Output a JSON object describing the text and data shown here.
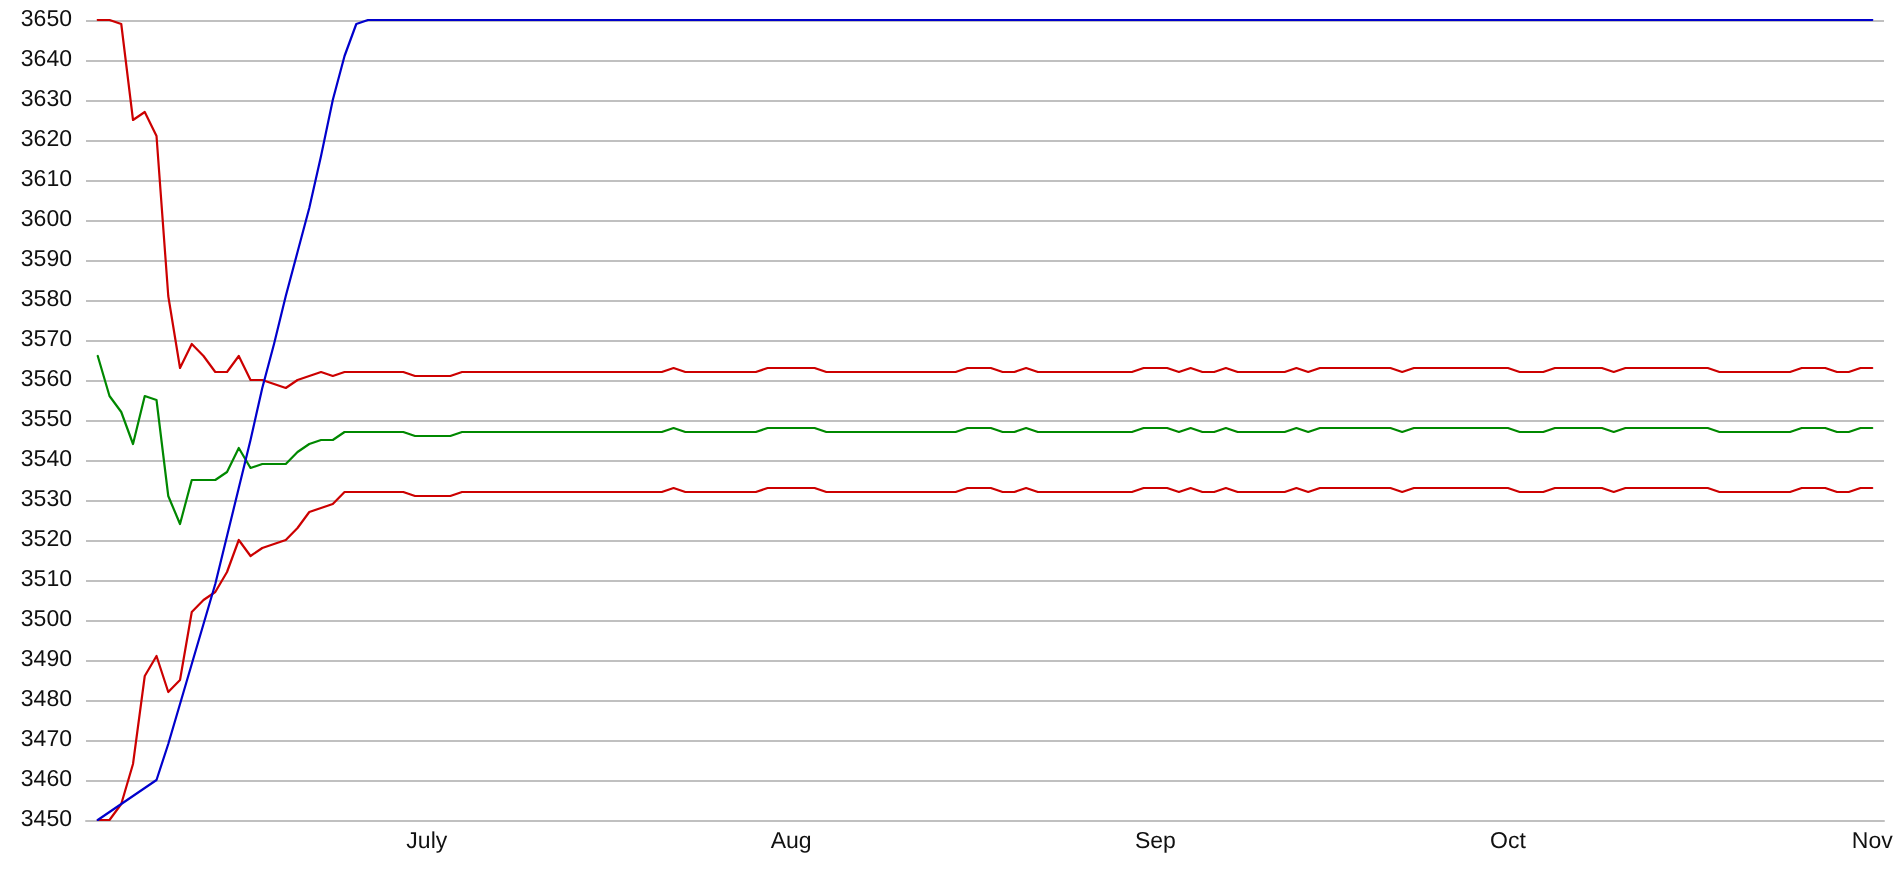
{
  "chart_data": {
    "type": "line",
    "x": [
      "--06-03",
      "--06-04",
      "--06-05",
      "--06-06",
      "--06-07",
      "--06-08",
      "--06-09",
      "--06-10",
      "--06-11",
      "--06-12",
      "--06-13",
      "--06-14",
      "--06-15",
      "--06-16",
      "--06-17",
      "--06-18",
      "--06-19",
      "--06-20",
      "--06-21",
      "--06-22",
      "--06-23",
      "--06-24",
      "--06-29",
      "--06-30",
      "--07-03",
      "--07-04",
      "--07-21",
      "--07-22",
      "--07-23",
      "--07-29",
      "--07-30",
      "--08-03",
      "--08-04",
      "--08-15",
      "--08-16",
      "--08-18",
      "--08-19",
      "--08-20",
      "--08-21",
      "--08-22",
      "--08-30",
      "--08-31",
      "--09-02",
      "--09-03",
      "--09-04",
      "--09-05",
      "--09-06",
      "--09-07",
      "--09-08",
      "--09-12",
      "--09-13",
      "--09-14",
      "--09-15",
      "--09-21",
      "--09-22",
      "--09-23",
      "--10-01",
      "--10-02",
      "--10-04",
      "--10-05",
      "--10-09",
      "--10-10",
      "--10-11",
      "--10-18",
      "--10-19",
      "--10-25",
      "--10-26",
      "--10-28",
      "--10-29",
      "--10-30",
      "--10-31",
      "--11-01"
    ],
    "series": [
      {
        "color": "#cc0000",
        "values": [
          3650,
          3650,
          3649,
          3625,
          3627,
          3621,
          3581,
          3563,
          3569,
          3566,
          3562,
          3562,
          3566,
          3560,
          3560,
          3559,
          3558,
          3560,
          3561,
          3562,
          3561,
          3562,
          3562,
          3561,
          3561,
          3562,
          3562,
          3563,
          3562,
          3562,
          3563,
          3563,
          3562,
          3562,
          3563,
          3563,
          3562,
          3562,
          3563,
          3562,
          3562,
          3563,
          3563,
          3562,
          3563,
          3562,
          3562,
          3563,
          3562,
          3562,
          3563,
          3562,
          3563,
          3563,
          3562,
          3563,
          3563,
          3562,
          3562,
          3563,
          3563,
          3562,
          3563,
          3563,
          3562,
          3562,
          3563,
          3563,
          3562,
          3562,
          3563,
          3563
        ]
      },
      {
        "color": "#008800",
        "values": [
          3566,
          3556,
          3552,
          3544,
          3556,
          3555,
          3531,
          3524,
          3535,
          3535,
          3535,
          3537,
          3543,
          3538,
          3539,
          3539,
          3539,
          3542,
          3544,
          3545,
          3545,
          3547,
          3547,
          3546,
          3546,
          3547,
          3547,
          3548,
          3547,
          3547,
          3548,
          3548,
          3547,
          3547,
          3548,
          3548,
          3547,
          3547,
          3548,
          3547,
          3547,
          3548,
          3548,
          3547,
          3548,
          3547,
          3547,
          3548,
          3547,
          3547,
          3548,
          3547,
          3548,
          3548,
          3547,
          3548,
          3548,
          3547,
          3547,
          3548,
          3548,
          3547,
          3548,
          3548,
          3547,
          3547,
          3548,
          3548,
          3547,
          3547,
          3548,
          3548
        ]
      },
      {
        "color": "#cc0000",
        "values": [
          3450,
          3450,
          3454,
          3464,
          3486,
          3491,
          3482,
          3485,
          3502,
          3505,
          3507,
          3512,
          3520,
          3516,
          3518,
          3519,
          3520,
          3523,
          3527,
          3528,
          3529,
          3532,
          3532,
          3531,
          3531,
          3532,
          3532,
          3533,
          3532,
          3532,
          3533,
          3533,
          3532,
          3532,
          3533,
          3533,
          3532,
          3532,
          3533,
          3532,
          3532,
          3533,
          3533,
          3532,
          3533,
          3532,
          3532,
          3533,
          3532,
          3532,
          3533,
          3532,
          3533,
          3533,
          3532,
          3533,
          3533,
          3532,
          3532,
          3533,
          3533,
          3532,
          3533,
          3533,
          3532,
          3532,
          3533,
          3533,
          3532,
          3532,
          3533,
          3533
        ]
      },
      {
        "color": "#0000cc",
        "x": [
          "--06-03",
          "--06-08",
          "--06-09",
          "--06-10",
          "--06-11",
          "--06-12",
          "--06-13",
          "--06-14",
          "--06-15",
          "--06-16",
          "--06-17",
          "--06-18",
          "--06-19",
          "--06-20",
          "--06-21",
          "--06-22",
          "--06-23",
          "--06-24",
          "--06-25",
          "--06-26",
          "--11-01"
        ],
        "values": [
          3450,
          3460,
          3469,
          3479,
          3489,
          3499,
          3509,
          3521,
          3533,
          3545,
          3558,
          3569,
          3581,
          3592,
          3603,
          3616,
          3630,
          3641,
          3649,
          3650,
          3650
        ]
      }
    ],
    "xlim": [
      "--06-02",
      "--11-02"
    ],
    "xticks": [
      {
        "value": "--07-01",
        "label": "July"
      },
      {
        "value": "--08-01",
        "label": "Aug"
      },
      {
        "value": "--09-01",
        "label": "Sep"
      },
      {
        "value": "--10-01",
        "label": "Oct"
      },
      {
        "value": "--11-01",
        "label": "Nov"
      }
    ],
    "ylim": [
      3450,
      3650
    ],
    "yticks": [
      3450,
      3460,
      3470,
      3480,
      3490,
      3500,
      3510,
      3520,
      3530,
      3540,
      3550,
      3560,
      3570,
      3580,
      3590,
      3600,
      3610,
      3620,
      3630,
      3640,
      3650
    ],
    "grid": "y"
  }
}
